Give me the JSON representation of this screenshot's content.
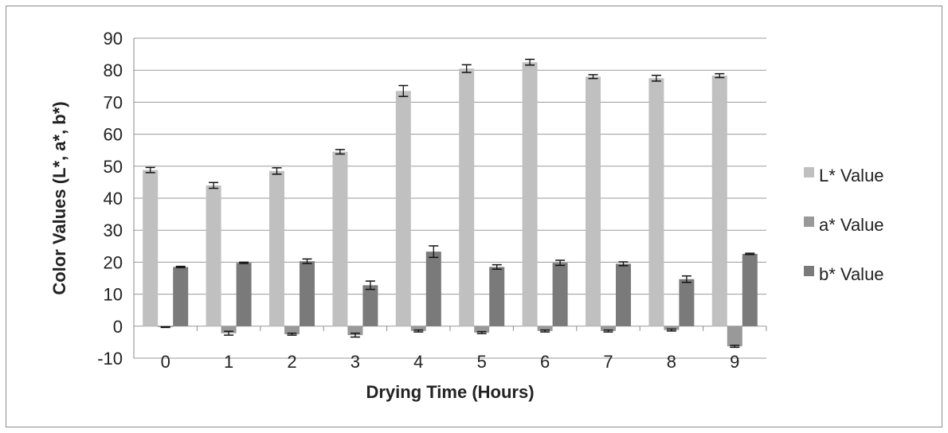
{
  "chart_data": {
    "type": "bar",
    "title": "",
    "xlabel": "Drying Time (Hours)",
    "ylabel": "Color Values (L*, a*, b*)",
    "ylim": [
      -10,
      90
    ],
    "yticks": [
      -10,
      0,
      10,
      20,
      30,
      40,
      50,
      60,
      70,
      80,
      90
    ],
    "grid": true,
    "legend_position": "right",
    "categories": [
      "0",
      "1",
      "2",
      "3",
      "4",
      "5",
      "6",
      "7",
      "8",
      "9"
    ],
    "series": [
      {
        "name": "L* Value",
        "color": "#c0c0c0",
        "values": [
          48.8,
          44.0,
          48.5,
          54.5,
          73.5,
          80.5,
          82.5,
          78.0,
          77.5,
          78.3
        ],
        "errors": [
          0.8,
          0.9,
          1.0,
          0.7,
          1.7,
          1.2,
          0.9,
          0.6,
          0.9,
          0.6
        ]
      },
      {
        "name": "a* Value",
        "color": "#999999",
        "values": [
          -0.3,
          -2.2,
          -2.5,
          -2.8,
          -1.5,
          -2.0,
          -1.5,
          -1.5,
          -1.2,
          -6.3
        ],
        "errors": [
          0.1,
          0.6,
          0.3,
          0.6,
          0.3,
          0.3,
          0.3,
          0.3,
          0.3,
          0.3
        ]
      },
      {
        "name": "b* Value",
        "color": "#7a7a7a",
        "values": [
          18.5,
          19.8,
          20.3,
          12.8,
          23.3,
          18.5,
          19.8,
          19.5,
          14.7,
          22.6
        ],
        "errors": [
          0.2,
          0.2,
          0.7,
          1.3,
          1.8,
          0.7,
          0.8,
          0.6,
          1.0,
          0.2
        ]
      }
    ]
  }
}
